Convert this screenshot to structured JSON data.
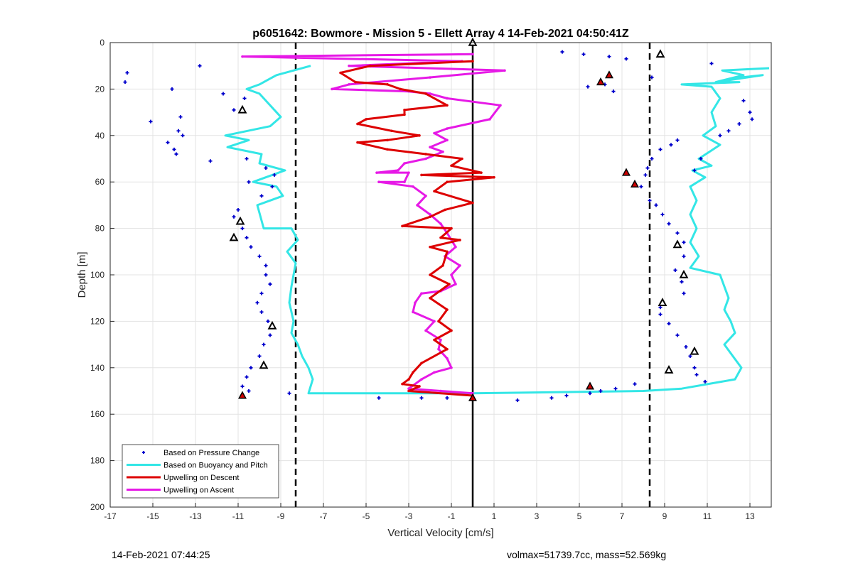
{
  "footer": {
    "timestamp": "14-Feb-2021 07:44:25",
    "stats": "volmax=51739.7cc, mass=52.569kg"
  },
  "chart_data": {
    "type": "line",
    "title": "p6051642: Bowmore - Mission 5 - Ellett Array 4 14-Feb-2021 04:50:41Z",
    "xlabel": "Vertical Velocity [cm/s]",
    "ylabel": "Depth [m]",
    "xlim": [
      -17,
      14
    ],
    "ylim": [
      0,
      200
    ],
    "y_reversed": true,
    "grid": true,
    "xticks": [
      -17,
      -15,
      -13,
      -11,
      -9,
      -7,
      -5,
      -3,
      -1,
      1,
      3,
      5,
      7,
      9,
      11,
      13
    ],
    "yticks": [
      0,
      20,
      40,
      60,
      80,
      100,
      120,
      140,
      160,
      180,
      200
    ],
    "legend_position": "bottom-left",
    "legend": [
      {
        "label": "Based on Pressure Change",
        "color": "#0000cc",
        "style": "marker"
      },
      {
        "label": "Based on Buoyancy and Pitch",
        "color": "#33e6e6",
        "style": "line"
      },
      {
        "label": "Upwelling on Descent",
        "color": "#dd0000",
        "style": "line"
      },
      {
        "label": "Upwelling on Ascent",
        "color": "#e619e6",
        "style": "line"
      }
    ],
    "reference_lines": [
      {
        "x": -8.3,
        "style": "dashed",
        "color": "#000000"
      },
      {
        "x": 8.3,
        "style": "dashed",
        "color": "#000000"
      },
      {
        "x": 0,
        "style": "solid",
        "color": "#000000"
      }
    ],
    "series": [
      {
        "color": "#33e6e6",
        "points": [
          [
            13.9,
            11
          ],
          [
            11.7,
            12
          ],
          [
            12.7,
            14
          ],
          [
            11.4,
            17
          ],
          [
            12.6,
            15
          ],
          [
            13.6,
            14
          ],
          [
            11.4,
            17
          ],
          [
            12.5,
            17
          ],
          [
            9.8,
            18
          ],
          [
            11.2,
            19
          ],
          [
            11.6,
            24
          ],
          [
            11.2,
            30
          ],
          [
            11.4,
            36
          ],
          [
            10.8,
            40
          ],
          [
            11.6,
            44
          ],
          [
            11.1,
            47
          ],
          [
            10.6,
            50
          ],
          [
            11.2,
            53
          ],
          [
            10.3,
            55
          ],
          [
            10.9,
            58
          ],
          [
            10.2,
            62
          ],
          [
            10.5,
            68
          ],
          [
            10.2,
            74
          ],
          [
            10.5,
            80
          ],
          [
            10.2,
            86
          ],
          [
            10.6,
            92
          ],
          [
            10.2,
            97
          ],
          [
            11.6,
            100
          ],
          [
            11.8,
            105
          ],
          [
            12.0,
            110
          ],
          [
            11.8,
            115
          ],
          [
            12.1,
            120
          ],
          [
            12.3,
            125
          ],
          [
            11.8,
            130
          ],
          [
            12.2,
            135
          ],
          [
            12.6,
            140
          ],
          [
            12.3,
            145
          ],
          [
            9.8,
            149
          ],
          [
            8.0,
            150
          ],
          [
            0,
            151
          ],
          [
            -7.7,
            151
          ],
          [
            -7.5,
            145
          ],
          [
            -7.7,
            140
          ],
          [
            -8.0,
            135
          ],
          [
            -8.2,
            130
          ],
          [
            -8.5,
            125
          ],
          [
            -8.4,
            120
          ],
          [
            -8.6,
            112
          ],
          [
            -8.5,
            105
          ],
          [
            -8.3,
            95
          ],
          [
            -8.7,
            90
          ],
          [
            -8.2,
            85
          ],
          [
            -8.5,
            80
          ],
          [
            -9.8,
            80
          ],
          [
            -10.1,
            70
          ],
          [
            -8.9,
            66
          ],
          [
            -9.2,
            62
          ],
          [
            -10.3,
            60
          ],
          [
            -8.8,
            55
          ],
          [
            -10.0,
            52
          ],
          [
            -9.9,
            48
          ],
          [
            -11.5,
            45
          ],
          [
            -10.5,
            42
          ],
          [
            -11.6,
            40
          ],
          [
            -9.5,
            36
          ],
          [
            -9.0,
            32
          ],
          [
            -9.6,
            26
          ],
          [
            -10.0,
            22
          ],
          [
            -10.6,
            20
          ],
          [
            -10.0,
            18
          ],
          [
            -9.6,
            16
          ],
          [
            -9.2,
            14
          ],
          [
            -7.6,
            10
          ]
        ]
      },
      {
        "color": "#e619e6",
        "points": [
          [
            0,
            5
          ],
          [
            -10.8,
            6
          ],
          [
            -0.5,
            8
          ],
          [
            -5.8,
            10
          ],
          [
            1.5,
            12
          ],
          [
            -2.0,
            15
          ],
          [
            -5.8,
            18
          ],
          [
            -6.6,
            20
          ],
          [
            -3.0,
            21
          ],
          [
            -2.0,
            22
          ],
          [
            -1.2,
            24
          ],
          [
            1.3,
            27
          ],
          [
            0.8,
            33
          ],
          [
            -1.2,
            37
          ],
          [
            -1.8,
            39
          ],
          [
            -1.2,
            42
          ],
          [
            -2.0,
            45
          ],
          [
            -1.4,
            47
          ],
          [
            -2.2,
            50
          ],
          [
            -3.2,
            52
          ],
          [
            -3.5,
            55
          ],
          [
            -4.5,
            56
          ],
          [
            -3.0,
            56
          ],
          [
            -3.2,
            60
          ],
          [
            -4.4,
            60
          ],
          [
            -2.8,
            62
          ],
          [
            -2.2,
            66
          ],
          [
            -2.6,
            70
          ],
          [
            -2.0,
            74
          ],
          [
            -1.5,
            78
          ],
          [
            -1.2,
            82
          ],
          [
            -0.8,
            88
          ],
          [
            -1.3,
            92
          ],
          [
            -0.6,
            96
          ],
          [
            -1.0,
            100
          ],
          [
            -0.8,
            104
          ],
          [
            -1.5,
            107
          ],
          [
            -2.4,
            108
          ],
          [
            -2.7,
            112
          ],
          [
            -2.8,
            116
          ],
          [
            -1.8,
            120
          ],
          [
            -2.2,
            124
          ],
          [
            -1.5,
            128
          ],
          [
            -1.6,
            132
          ],
          [
            -1.2,
            136
          ],
          [
            -1.0,
            140
          ],
          [
            -1.8,
            142
          ],
          [
            -2.4,
            145
          ],
          [
            -3.0,
            149
          ],
          [
            -1.5,
            150
          ],
          [
            0,
            151
          ]
        ]
      },
      {
        "color": "#dd0000",
        "points": [
          [
            0,
            8
          ],
          [
            -4.8,
            10
          ],
          [
            -6.2,
            13
          ],
          [
            -5.5,
            17
          ],
          [
            -4.0,
            18
          ],
          [
            -3.4,
            20
          ],
          [
            -2.2,
            22
          ],
          [
            -1.2,
            27
          ],
          [
            -3.2,
            29
          ],
          [
            -3.2,
            31
          ],
          [
            -5.0,
            33
          ],
          [
            -5.4,
            35
          ],
          [
            -3.8,
            38
          ],
          [
            -2.5,
            40
          ],
          [
            -4.0,
            42
          ],
          [
            -5.4,
            43
          ],
          [
            -4.0,
            46
          ],
          [
            -2.2,
            48
          ],
          [
            -0.5,
            50
          ],
          [
            -1.0,
            53
          ],
          [
            0.4,
            56
          ],
          [
            -2.4,
            57
          ],
          [
            1.0,
            58
          ],
          [
            -1.2,
            60
          ],
          [
            -1.8,
            64
          ],
          [
            0,
            69
          ],
          [
            -1.3,
            72
          ],
          [
            -2.0,
            75
          ],
          [
            -3.3,
            79
          ],
          [
            -1.0,
            80
          ],
          [
            -1.5,
            84
          ],
          [
            -0.6,
            85
          ],
          [
            -2.0,
            88
          ],
          [
            -1.2,
            90
          ],
          [
            -1.4,
            96
          ],
          [
            -2.0,
            100
          ],
          [
            -1.1,
            104
          ],
          [
            -2.0,
            110
          ],
          [
            -1.2,
            115
          ],
          [
            -1.6,
            120
          ],
          [
            -1.0,
            124
          ],
          [
            -1.8,
            128
          ],
          [
            -1.2,
            132
          ],
          [
            -2.4,
            138
          ],
          [
            -2.8,
            142
          ],
          [
            -3.0,
            145
          ],
          [
            -3.3,
            147
          ],
          [
            -2.5,
            148
          ],
          [
            -3.0,
            150
          ],
          [
            0,
            152
          ]
        ]
      },
      {
        "color": "#0000cc",
        "style": "marker",
        "points": [
          [
            -16.2,
            13
          ],
          [
            -16.3,
            17
          ],
          [
            -12.8,
            10
          ],
          [
            -14.1,
            20
          ],
          [
            -11.7,
            22
          ],
          [
            -10.7,
            24
          ],
          [
            -11.2,
            29
          ],
          [
            -13.7,
            32
          ],
          [
            -15.1,
            34
          ],
          [
            -13.8,
            38
          ],
          [
            -13.6,
            40
          ],
          [
            -14.3,
            43
          ],
          [
            -14.0,
            46
          ],
          [
            -13.9,
            48
          ],
          [
            -12.3,
            51
          ],
          [
            -10.6,
            50
          ],
          [
            -9.7,
            54
          ],
          [
            -9.3,
            57
          ],
          [
            -10.5,
            60
          ],
          [
            -9.4,
            62
          ],
          [
            -9.9,
            66
          ],
          [
            -11.0,
            72
          ],
          [
            -11.2,
            75
          ],
          [
            -10.8,
            80
          ],
          [
            -10.6,
            84
          ],
          [
            -10.4,
            88
          ],
          [
            -10.0,
            92
          ],
          [
            -9.7,
            96
          ],
          [
            -9.7,
            100
          ],
          [
            -9.5,
            104
          ],
          [
            -9.9,
            108
          ],
          [
            -10.1,
            112
          ],
          [
            -9.9,
            116
          ],
          [
            -9.6,
            120
          ],
          [
            -9.5,
            126
          ],
          [
            -9.8,
            130
          ],
          [
            -10.0,
            135
          ],
          [
            -10.4,
            140
          ],
          [
            -10.6,
            144
          ],
          [
            -10.8,
            148
          ],
          [
            -10.5,
            150
          ],
          [
            -8.6,
            151
          ],
          [
            -4.4,
            153
          ],
          [
            -2.4,
            153
          ],
          [
            -1.2,
            153
          ],
          [
            2.1,
            154
          ],
          [
            3.7,
            153
          ],
          [
            4.4,
            152
          ],
          [
            5.5,
            151
          ],
          [
            6.0,
            150
          ],
          [
            6.7,
            149
          ],
          [
            7.6,
            147
          ],
          [
            4.2,
            4
          ],
          [
            5.2,
            5
          ],
          [
            6.4,
            6
          ],
          [
            7.2,
            7
          ],
          [
            8.4,
            15
          ],
          [
            6.2,
            18
          ],
          [
            6.6,
            21
          ],
          [
            5.4,
            19
          ],
          [
            8.2,
            54
          ],
          [
            8.4,
            50
          ],
          [
            8.8,
            46
          ],
          [
            9.3,
            44
          ],
          [
            9.6,
            42
          ],
          [
            11.2,
            9
          ],
          [
            12.7,
            25
          ],
          [
            13.0,
            30
          ],
          [
            13.1,
            33
          ],
          [
            12.5,
            35
          ],
          [
            12.0,
            38
          ],
          [
            11.6,
            40
          ],
          [
            10.7,
            50
          ],
          [
            10.4,
            55
          ],
          [
            8.1,
            57
          ],
          [
            7.9,
            62
          ],
          [
            8.3,
            68
          ],
          [
            8.6,
            70
          ],
          [
            8.9,
            74
          ],
          [
            9.2,
            78
          ],
          [
            9.6,
            82
          ],
          [
            9.9,
            86
          ],
          [
            9.9,
            92
          ],
          [
            9.5,
            98
          ],
          [
            9.8,
            103
          ],
          [
            9.9,
            108
          ],
          [
            8.8,
            114
          ],
          [
            8.8,
            117
          ],
          [
            9.2,
            121
          ],
          [
            9.6,
            126
          ],
          [
            10.0,
            131
          ],
          [
            10.2,
            135
          ],
          [
            10.4,
            140
          ],
          [
            10.5,
            143
          ],
          [
            10.9,
            146
          ]
        ]
      },
      {
        "color": "#000000",
        "style": "triangle-open",
        "points": [
          [
            0,
            0
          ],
          [
            8.8,
            5
          ],
          [
            -10.8,
            29
          ],
          [
            -10.9,
            77
          ],
          [
            -11.2,
            84
          ],
          [
            -9.4,
            122
          ],
          [
            -9.8,
            139
          ],
          [
            9.6,
            87
          ],
          [
            9.9,
            100
          ],
          [
            8.9,
            112
          ],
          [
            10.4,
            133
          ],
          [
            9.2,
            141
          ]
        ]
      },
      {
        "color": "#cc0000",
        "style": "triangle-filled",
        "points": [
          [
            6.4,
            14
          ],
          [
            6.0,
            17
          ],
          [
            7.2,
            56
          ],
          [
            7.6,
            61
          ],
          [
            5.5,
            148
          ],
          [
            -10.8,
            152
          ],
          [
            0,
            153
          ]
        ]
      }
    ]
  }
}
